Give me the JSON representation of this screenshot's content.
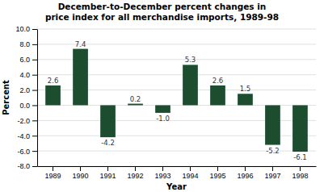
{
  "chart_data": {
    "type": "bar",
    "title": "December-to-December percent changes in\nprice index for all merchandise imports, 1989-98",
    "xlabel": "Year",
    "ylabel": "Percent",
    "categories": [
      "1989",
      "1990",
      "1991",
      "1992",
      "1993",
      "1994",
      "1995",
      "1996",
      "1997",
      "1998"
    ],
    "values": [
      2.6,
      7.4,
      -4.2,
      0.2,
      -1.0,
      5.3,
      2.6,
      1.5,
      -5.2,
      -6.1
    ],
    "value_labels": [
      "2.6",
      "7.4",
      "-4.2",
      "0.2",
      "-1.0",
      "5.3",
      "2.6",
      "1.5",
      "-5.2",
      "-6.1"
    ],
    "data_labels": true,
    "color": "#1B4D2E",
    "ylim": [
      -8.0,
      10.0
    ],
    "yticks": [
      {
        "value": -8.0,
        "label": "-8.0"
      },
      {
        "value": -6.0,
        "label": "-6.0"
      },
      {
        "value": -4.0,
        "label": "-4.0"
      },
      {
        "value": -2.0,
        "label": "-2.0"
      },
      {
        "value": 0.0,
        "label": "0.0"
      },
      {
        "value": 2.0,
        "label": "2.0"
      },
      {
        "value": 4.0,
        "label": "4.0"
      },
      {
        "value": 6.0,
        "label": "6.0"
      },
      {
        "value": 8.0,
        "label": "8.0"
      },
      {
        "value": 10.0,
        "label": "10.0"
      }
    ],
    "grid": true
  }
}
